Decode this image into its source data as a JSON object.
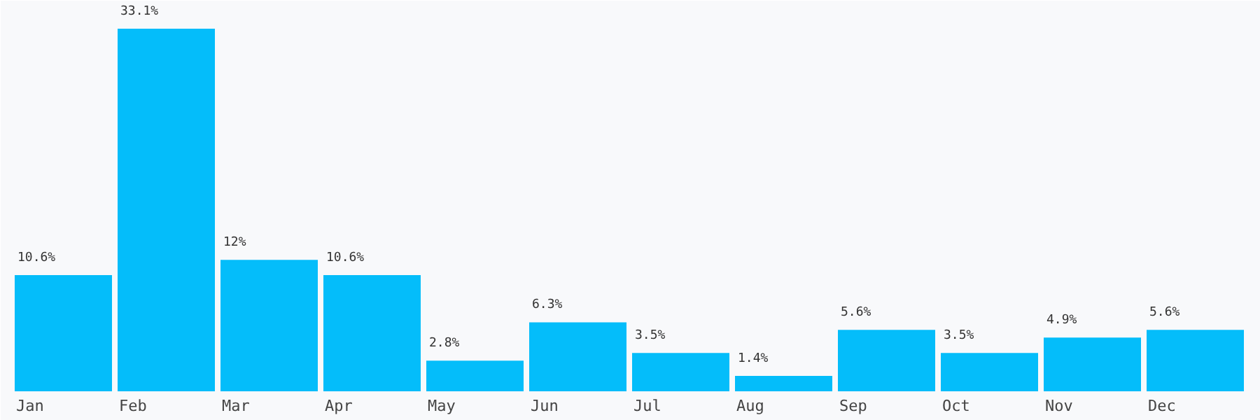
{
  "chart_data": {
    "type": "bar",
    "categories": [
      "Jan",
      "Feb",
      "Mar",
      "Apr",
      "May",
      "Jun",
      "Jul",
      "Aug",
      "Sep",
      "Oct",
      "Nov",
      "Dec"
    ],
    "values": [
      10.6,
      33.1,
      12,
      10.6,
      2.8,
      6.3,
      3.5,
      1.4,
      5.6,
      3.5,
      4.9,
      5.6
    ],
    "value_labels": [
      "10.6%",
      "33.1%",
      "12%",
      "10.6%",
      "2.8%",
      "6.3%",
      "3.5%",
      "1.4%",
      "5.6%",
      "3.5%",
      "4.9%",
      "5.6%"
    ],
    "color": "#04bdfa",
    "grid": false
  }
}
